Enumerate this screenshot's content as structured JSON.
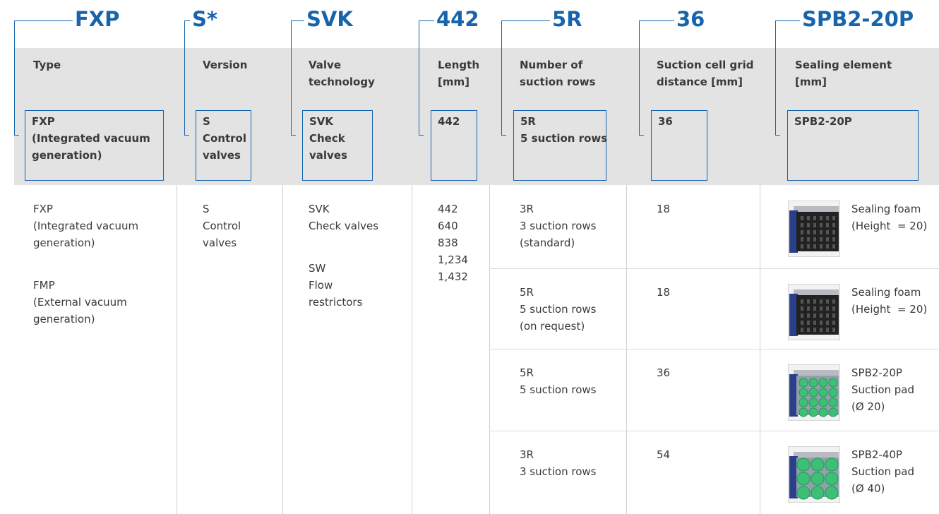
{
  "codes": [
    "FXP",
    "S*",
    "SVK",
    "442",
    "5R",
    "36",
    "SPB2-20P"
  ],
  "columns": [
    {
      "header": [
        "Type"
      ],
      "example": [
        "FXP",
        "(Integrated vacuum",
        "generation)"
      ]
    },
    {
      "header": [
        "Version"
      ],
      "example": [
        "S",
        "Control",
        "valves"
      ]
    },
    {
      "header": [
        "Valve",
        "technology"
      ],
      "example": [
        "SVK",
        "Check",
        "valves"
      ]
    },
    {
      "header": [
        "Length",
        "[mm]"
      ],
      "example": [
        "442"
      ]
    },
    {
      "header": [
        "Number of",
        "suction rows"
      ],
      "example": [
        "5R",
        "5 suction rows"
      ]
    },
    {
      "header": [
        "Suction cell grid",
        "distance [mm]"
      ],
      "example": [
        "36"
      ]
    },
    {
      "header": [
        "Sealing element",
        "[mm]"
      ],
      "example": [
        "SPB2-20P"
      ]
    }
  ],
  "body": [
    [
      [
        "FXP",
        "(Integrated vacuum",
        "generation)"
      ],
      [
        "FMP",
        "(External vacuum",
        "generation)"
      ]
    ],
    [
      [
        "S",
        "Control",
        "valves"
      ]
    ],
    [
      [
        "SVK",
        "Check valves"
      ],
      [
        "SW",
        "Flow",
        "restrictors"
      ]
    ],
    [
      [
        "442",
        "640",
        "838",
        "1,234",
        "1,432"
      ]
    ]
  ],
  "options": [
    {
      "rows": [
        "3R",
        "3 suction rows",
        "(standard)"
      ],
      "grid": "18",
      "seal": [
        "Sealing foam",
        "(Height  = 20)"
      ]
    },
    {
      "rows": [
        "5R",
        "5 suction rows",
        "(on request)"
      ],
      "grid": "18",
      "seal": [
        "Sealing foam",
        "(Height  = 20)"
      ]
    },
    {
      "rows": [
        "5R",
        "5 suction rows"
      ],
      "grid": "36",
      "seal": [
        "SPB2-20P",
        "Suction pad",
        "(Ø 20)"
      ]
    },
    {
      "rows": [
        "3R",
        "3 suction rows"
      ],
      "grid": "54",
      "seal": [
        "SPB2-40P",
        "Suction pad",
        "(Ø 40)"
      ]
    }
  ]
}
